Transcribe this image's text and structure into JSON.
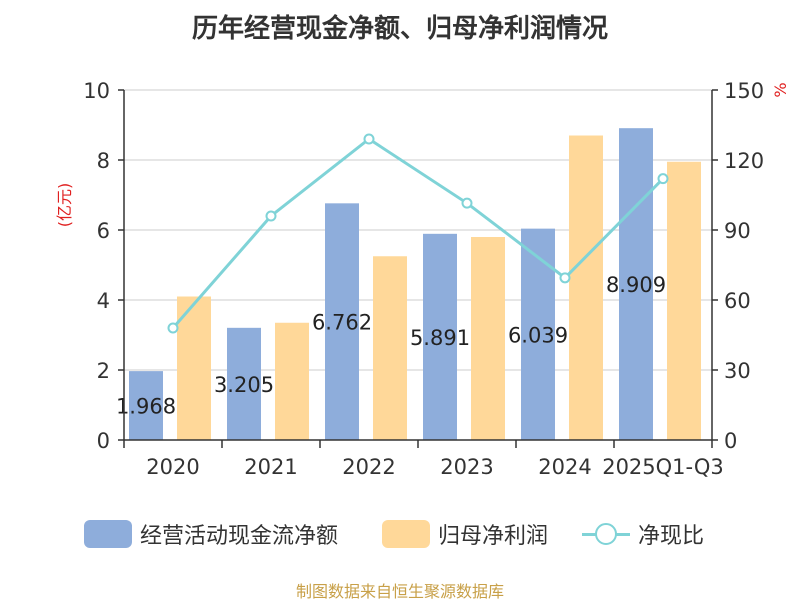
{
  "title": "历年经营现金净额、归母净利润情况",
  "source": "制图数据来自恒生聚源数据库",
  "colors": {
    "cash_flow": "#8eaddb",
    "net_profit": "#ffd899",
    "ratio": "#7fd3d7",
    "left_unit": "#e02020",
    "right_unit": "#e02020",
    "source": "#c8a048"
  },
  "chart_data": {
    "type": "bar",
    "title": "历年经营现金净额、归母净利润情况",
    "categories": [
      "2020",
      "2021",
      "2022",
      "2023",
      "2024",
      "2025Q1-Q3"
    ],
    "y_left": {
      "unit": "(亿元)",
      "ylim": [
        0,
        10
      ],
      "ticks": [
        0,
        2,
        4,
        6,
        8,
        10
      ]
    },
    "y_right": {
      "unit": "%",
      "ylim": [
        0,
        150
      ],
      "ticks": [
        0,
        30,
        60,
        90,
        120,
        150
      ]
    },
    "grid": true,
    "legend_position": "bottom",
    "series": [
      {
        "name": "经营活动现金流净额",
        "kind": "bar",
        "axis": "left",
        "values": [
          1.968,
          3.205,
          6.762,
          5.891,
          6.039,
          8.909
        ],
        "data_labels": [
          "1.968",
          "3.205",
          "6.762",
          "5.891",
          "6.039",
          "8.909"
        ]
      },
      {
        "name": "归母净利润",
        "kind": "bar",
        "axis": "left",
        "values": [
          4.1,
          3.35,
          5.25,
          5.8,
          8.7,
          7.95
        ]
      },
      {
        "name": "净现比",
        "kind": "line",
        "axis": "right",
        "values": [
          48,
          96,
          129,
          101.5,
          69.5,
          112
        ]
      }
    ]
  }
}
